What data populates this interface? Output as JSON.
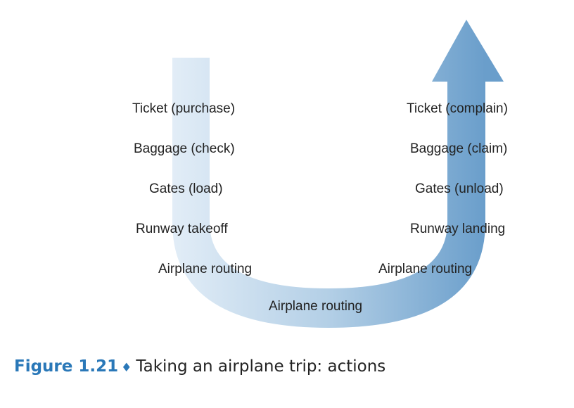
{
  "colors": {
    "arrow_light": "#e2edf7",
    "arrow_mid": "#b3cfe6",
    "arrow_dark": "#6a9ecb",
    "caption_accent": "#2a78b8",
    "text": "#222222"
  },
  "left_column": [
    {
      "label": "Ticket (purchase)"
    },
    {
      "label": "Baggage (check)"
    },
    {
      "label": "Gates (load)"
    },
    {
      "label": "Runway takeoff"
    },
    {
      "label": "Airplane routing"
    }
  ],
  "bottom": {
    "label": "Airplane routing"
  },
  "right_column": [
    {
      "label": "Ticket (complain)"
    },
    {
      "label": "Baggage (claim)"
    },
    {
      "label": "Gates (unload)"
    },
    {
      "label": "Runway landing"
    },
    {
      "label": "Airplane routing"
    }
  ],
  "caption": {
    "figure_number": "Figure 1.21",
    "symbol": "♦",
    "text": "Taking an airplane trip: actions"
  }
}
